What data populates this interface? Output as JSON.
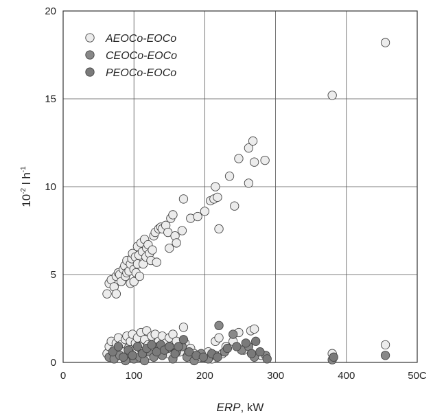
{
  "chart_data": {
    "type": "scatter",
    "title": "",
    "xlabel": {
      "italic": "ERP",
      "rest": ", kW"
    },
    "ylabel": {
      "base": "10",
      "exp": "-2",
      "unit": " l h",
      "unit_exp": "-1"
    },
    "xlim": [
      0,
      500
    ],
    "ylim": [
      0,
      20
    ],
    "x_ticks": [
      "0",
      "100",
      "200",
      "300",
      "400",
      "50C"
    ],
    "y_ticks": [
      "0",
      "5",
      "10",
      "15",
      "20"
    ],
    "grid": true,
    "legend_position": "top-left",
    "series": [
      {
        "name": "AEOCo-EOCo",
        "color": "#ececec",
        "points": [
          [
            62,
            3.9
          ],
          [
            65,
            4.5
          ],
          [
            68,
            4.7
          ],
          [
            72,
            4.3
          ],
          [
            75,
            4.9
          ],
          [
            75,
            3.9
          ],
          [
            78,
            5.1
          ],
          [
            80,
            5.0
          ],
          [
            82,
            4.6
          ],
          [
            85,
            5.3
          ],
          [
            87,
            5.5
          ],
          [
            88,
            4.9
          ],
          [
            90,
            5.8
          ],
          [
            90,
            5.1
          ],
          [
            93,
            5.2
          ],
          [
            95,
            4.5
          ],
          [
            95,
            5.6
          ],
          [
            97,
            5.9
          ],
          [
            98,
            6.2
          ],
          [
            100,
            4.6
          ],
          [
            100,
            5.3
          ],
          [
            102,
            6.0
          ],
          [
            103,
            5.1
          ],
          [
            105,
            5.6
          ],
          [
            105,
            6.6
          ],
          [
            107,
            6.1
          ],
          [
            108,
            4.9
          ],
          [
            110,
            6.8
          ],
          [
            112,
            6.3
          ],
          [
            113,
            5.6
          ],
          [
            115,
            7.0
          ],
          [
            117,
            6.0
          ],
          [
            118,
            6.5
          ],
          [
            120,
            6.7
          ],
          [
            122,
            6.2
          ],
          [
            124,
            5.8
          ],
          [
            126,
            6.4
          ],
          [
            128,
            7.2
          ],
          [
            130,
            7.4
          ],
          [
            132,
            5.7
          ],
          [
            135,
            7.6
          ],
          [
            138,
            7.7
          ],
          [
            140,
            7.6
          ],
          [
            145,
            7.8
          ],
          [
            148,
            7.4
          ],
          [
            150,
            6.5
          ],
          [
            152,
            8.2
          ],
          [
            155,
            8.4
          ],
          [
            158,
            7.2
          ],
          [
            160,
            6.8
          ],
          [
            168,
            7.5
          ],
          [
            170,
            9.3
          ],
          [
            180,
            8.2
          ],
          [
            190,
            8.3
          ],
          [
            200,
            8.6
          ],
          [
            208,
            9.2
          ],
          [
            213,
            9.3
          ],
          [
            215,
            10.0
          ],
          [
            218,
            9.4
          ],
          [
            220,
            7.6
          ],
          [
            235,
            10.6
          ],
          [
            242,
            8.9
          ],
          [
            248,
            11.6
          ],
          [
            262,
            12.2
          ],
          [
            262,
            10.2
          ],
          [
            268,
            12.6
          ],
          [
            270,
            11.4
          ],
          [
            285,
            11.5
          ],
          [
            380,
            15.2
          ],
          [
            455,
            18.2
          ],
          [
            62,
            0.5
          ],
          [
            65,
            0.9
          ],
          [
            68,
            1.2
          ],
          [
            72,
            0.7
          ],
          [
            75,
            1.1
          ],
          [
            78,
            1.4
          ],
          [
            82,
            1.0
          ],
          [
            85,
            0.6
          ],
          [
            88,
            1.3
          ],
          [
            90,
            1.5
          ],
          [
            92,
            0.8
          ],
          [
            95,
            1.2
          ],
          [
            98,
            1.6
          ],
          [
            100,
            0.5
          ],
          [
            102,
            1.1
          ],
          [
            105,
            1.4
          ],
          [
            108,
            0.9
          ],
          [
            110,
            1.7
          ],
          [
            112,
            0.6
          ],
          [
            115,
            1.3
          ],
          [
            118,
            1.8
          ],
          [
            120,
            1.0
          ],
          [
            122,
            0.4
          ],
          [
            125,
            1.5
          ],
          [
            128,
            0.8
          ],
          [
            130,
            1.6
          ],
          [
            135,
            1.2
          ],
          [
            138,
            0.6
          ],
          [
            140,
            1.5
          ],
          [
            145,
            1.1
          ],
          [
            148,
            0.5
          ],
          [
            150,
            1.4
          ],
          [
            155,
            1.6
          ],
          [
            158,
            0.9
          ],
          [
            160,
            1.2
          ],
          [
            165,
            0.6
          ],
          [
            170,
            2.0
          ],
          [
            172,
            1.1
          ],
          [
            180,
            0.8
          ],
          [
            185,
            0.5
          ],
          [
            195,
            0.3
          ],
          [
            205,
            0.6
          ],
          [
            210,
            0.2
          ],
          [
            215,
            1.2
          ],
          [
            220,
            1.4
          ],
          [
            225,
            0.5
          ],
          [
            230,
            0.9
          ],
          [
            240,
            1.2
          ],
          [
            248,
            1.7
          ],
          [
            255,
            0.7
          ],
          [
            265,
            1.8
          ],
          [
            270,
            1.9
          ],
          [
            280,
            0.4
          ],
          [
            380,
            0.5
          ],
          [
            455,
            1.0
          ]
        ]
      },
      {
        "name": "CEOCo-EOCo",
        "color": "#888888",
        "points": [
          [
            65,
            0.3
          ],
          [
            72,
            0.2
          ],
          [
            80,
            0.4
          ],
          [
            88,
            0.1
          ],
          [
            95,
            0.5
          ],
          [
            100,
            0.2
          ],
          [
            108,
            0.3
          ],
          [
            115,
            0.1
          ],
          [
            120,
            0.6
          ],
          [
            128,
            0.3
          ],
          [
            135,
            0.9
          ],
          [
            140,
            0.4
          ],
          [
            148,
            0.8
          ],
          [
            155,
            0.2
          ],
          [
            160,
            0.6
          ],
          [
            168,
            0.9
          ],
          [
            175,
            0.3
          ],
          [
            185,
            0.1
          ],
          [
            195,
            0.5
          ],
          [
            205,
            0.2
          ],
          [
            215,
            0.4
          ],
          [
            220,
            2.1
          ],
          [
            228,
            0.6
          ],
          [
            240,
            1.6
          ],
          [
            252,
            0.7
          ],
          [
            262,
            0.9
          ],
          [
            270,
            0.3
          ],
          [
            286,
            0.4
          ],
          [
            380,
            0.15
          ],
          [
            455,
            0.4
          ]
        ]
      },
      {
        "name": "PEOCo-EOCo",
        "color": "#7a7a7a",
        "points": [
          [
            70,
            0.6
          ],
          [
            78,
            0.9
          ],
          [
            85,
            0.3
          ],
          [
            92,
            0.7
          ],
          [
            98,
            0.4
          ],
          [
            105,
            0.9
          ],
          [
            112,
            0.5
          ],
          [
            118,
            0.8
          ],
          [
            125,
            1.0
          ],
          [
            132,
            0.6
          ],
          [
            138,
            1.0
          ],
          [
            143,
            0.7
          ],
          [
            150,
            0.9
          ],
          [
            158,
            0.5
          ],
          [
            163,
            0.9
          ],
          [
            170,
            1.3
          ],
          [
            178,
            0.6
          ],
          [
            188,
            0.4
          ],
          [
            198,
            0.3
          ],
          [
            210,
            0.5
          ],
          [
            218,
            0.3
          ],
          [
            232,
            0.8
          ],
          [
            245,
            0.9
          ],
          [
            258,
            1.1
          ],
          [
            266,
            0.5
          ],
          [
            272,
            1.2
          ],
          [
            278,
            0.6
          ],
          [
            288,
            0.2
          ],
          [
            382,
            0.3
          ]
        ]
      }
    ]
  }
}
